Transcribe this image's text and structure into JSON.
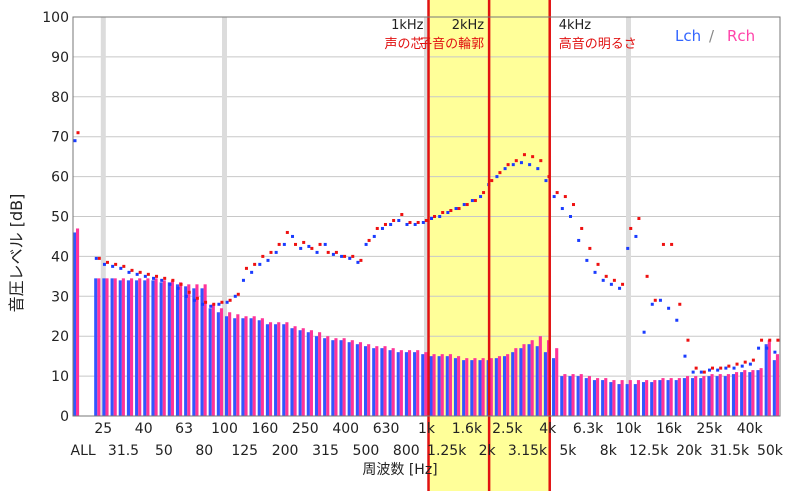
{
  "chart_data": {
    "type": "bar+scatter",
    "y_axis": {
      "label": "音圧レベル [dB]",
      "ylim": [
        0,
        100
      ],
      "ticks": [
        "0",
        "10",
        "20",
        "30",
        "40",
        "50",
        "60",
        "70",
        "80",
        "90",
        "100"
      ]
    },
    "x_axis": {
      "label": "周波数 [Hz]",
      "bands": [
        "ALL",
        "25",
        "31.5",
        "40",
        "50",
        "63",
        "80",
        "100",
        "125",
        "160",
        "200",
        "250",
        "315",
        "400",
        "500",
        "630",
        "800",
        "1k",
        "1.25k",
        "1.6k",
        "2k",
        "2.5k",
        "3.15k",
        "4k",
        "5k",
        "6.3k",
        "8k",
        "10k",
        "12.5k",
        "16k",
        "20k",
        "25k",
        "31.5k",
        "40k",
        "50k"
      ],
      "labels_row1": [
        "25",
        "40",
        "63",
        "100",
        "160",
        "250",
        "400",
        "630",
        "1k",
        "1.6k",
        "2.5k",
        "4k",
        "6.3k",
        "10k",
        "16k",
        "25k",
        "40k"
      ],
      "labels_row2": [
        "ALL",
        "31.5",
        "50",
        "80",
        "125",
        "200",
        "315",
        "500",
        "800",
        "1.25k",
        "2k",
        "3.15k",
        "5k",
        "8k",
        "12.5k",
        "20k",
        "31.5k",
        "50k"
      ]
    },
    "legend": {
      "placement": "top-right",
      "lch": "Lch",
      "sep": "/",
      "rch": "Rch"
    },
    "colors": {
      "lch": "#3355ff",
      "rch": "#ff3399",
      "dot_l": "#1a3cff",
      "dot_r": "#ee1111",
      "band_fill": "#ffff99",
      "band_line": "#e11111",
      "grid": "#c8c8c8"
    },
    "annotations": [
      {
        "freq": "1kHz",
        "text": "声の芯"
      },
      {
        "freq": "2kHz",
        "text": "子音の輪郭"
      },
      {
        "freq": "4kHz",
        "text": "高音の明るさ"
      }
    ],
    "series": [
      {
        "name": "Lch",
        "kind": "bars",
        "values": [
          46,
          34.5,
          34.5,
          34.5,
          34,
          34,
          34,
          34,
          34,
          33.5,
          33.5,
          33,
          32.5,
          32,
          32,
          27,
          26,
          25,
          24.5,
          24.5,
          24.5,
          24,
          23,
          23,
          23,
          22,
          21.5,
          21,
          20,
          19.5,
          19,
          19,
          18.5,
          18,
          17.5,
          17,
          17,
          16.5,
          16,
          16,
          16,
          15.5,
          15,
          15,
          15,
          14.5,
          14,
          14,
          14,
          14,
          14.5,
          15,
          16,
          17,
          18,
          17.5,
          16,
          14.5,
          10,
          10,
          10,
          9.5,
          9,
          9,
          8.5,
          8,
          8,
          8,
          8.5,
          8.5,
          9,
          9,
          9,
          9.5,
          9.5,
          9.5,
          10,
          10,
          10,
          10.5,
          11,
          11,
          11.5,
          18,
          14
        ]
      },
      {
        "name": "Rch",
        "kind": "bars",
        "values": [
          47,
          34.5,
          34.5,
          34.5,
          34.5,
          34.5,
          34.5,
          34.5,
          34.5,
          34,
          34,
          33.5,
          33,
          33,
          33,
          28,
          27,
          26,
          25.5,
          25,
          25,
          24.5,
          23.5,
          23.5,
          23.5,
          22.5,
          22,
          21.5,
          21,
          20,
          19.5,
          19.5,
          19,
          18.5,
          18,
          17.5,
          17.5,
          17,
          16.5,
          16.5,
          16.5,
          16,
          15.5,
          15.5,
          15.5,
          15,
          14.5,
          14.5,
          14.5,
          14.5,
          15,
          15.5,
          17,
          18,
          19,
          20,
          19,
          17,
          10.5,
          10.5,
          10.5,
          10,
          9.5,
          9.5,
          9,
          9,
          9,
          9,
          9,
          9,
          9.5,
          9.5,
          9.5,
          10,
          10,
          10,
          10.5,
          10.5,
          10.5,
          11,
          11.5,
          11.5,
          12,
          19,
          15.5
        ]
      },
      {
        "name": "Lch",
        "kind": "dots",
        "values": [
          69,
          39.5,
          38,
          37.5,
          37,
          36,
          35.5,
          35,
          34.5,
          34,
          33,
          32,
          30,
          29,
          28,
          27.5,
          28,
          28.5,
          30,
          34,
          36,
          38,
          39,
          41,
          43,
          45,
          42,
          42.5,
          41,
          43,
          40.5,
          40,
          39.5,
          38.5,
          43,
          45,
          47,
          48,
          49,
          48,
          48,
          48.5,
          49.5,
          50,
          51,
          52,
          53,
          54,
          55,
          58,
          60,
          62,
          63,
          63.5,
          63,
          62,
          59,
          55,
          52,
          50,
          44,
          39,
          36,
          34,
          33,
          32,
          42,
          45,
          21,
          28,
          29,
          27,
          24,
          15,
          11,
          11,
          11.5,
          11.5,
          12,
          12,
          12.5,
          13,
          17,
          17,
          16
        ]
      },
      {
        "name": "Rch",
        "kind": "dots",
        "values": [
          71,
          39.5,
          38.5,
          38,
          37.5,
          36.5,
          36,
          35.5,
          35,
          34.5,
          34,
          33,
          31,
          29.5,
          28.5,
          28,
          28.5,
          29,
          30.5,
          37,
          38,
          40,
          41,
          43,
          46,
          43,
          43.5,
          42,
          43,
          41,
          41,
          40,
          40,
          39,
          44,
          47,
          48,
          49,
          50.5,
          48.5,
          48.5,
          49,
          50,
          51,
          51.5,
          52,
          53,
          54,
          56,
          59,
          61,
          63,
          64,
          65.5,
          65,
          64,
          60,
          56,
          55,
          53,
          47,
          42,
          38,
          35,
          34,
          33,
          47,
          49.5,
          35,
          29,
          43,
          43,
          28,
          19,
          12,
          11,
          12,
          12,
          12.5,
          13,
          13.5,
          14,
          19,
          19,
          19
        ]
      }
    ]
  }
}
